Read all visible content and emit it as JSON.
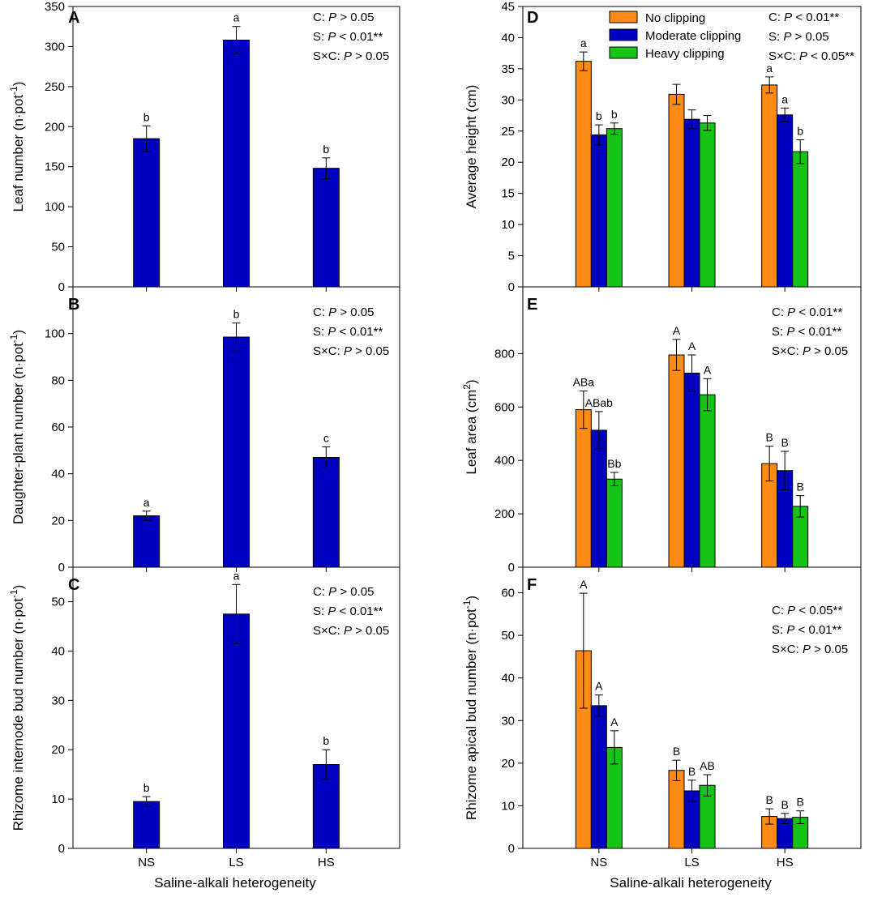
{
  "figure": {
    "xlabel": "Saline-alkali heterogeneity",
    "groups": [
      "NS",
      "LS",
      "HS"
    ]
  },
  "legend": [
    {
      "name": "No clipping",
      "color": "#FF8A14"
    },
    {
      "name": "Moderate clipping",
      "color": "#0000C0"
    },
    {
      "name": "Heavy clipping",
      "color": "#16C416"
    }
  ],
  "chart_data": [
    {
      "id": "A",
      "type": "bar",
      "ylabel_parts": [
        "Leaf number (n·pot",
        "-1",
        ")"
      ],
      "ylim": [
        0,
        350
      ],
      "yticks": [
        0,
        50,
        100,
        150,
        200,
        250,
        300,
        350
      ],
      "categories": [
        "NS",
        "LS",
        "HS"
      ],
      "series": [
        {
          "name": "All",
          "color": "#0000C0",
          "values": [
            185,
            308,
            148
          ],
          "errors": [
            16,
            17,
            13
          ],
          "letters": [
            "b",
            "a",
            "b"
          ]
        }
      ],
      "stats": [
        {
          "prefix": "C: ",
          "italic": "P",
          "suffix": " > 0.05"
        },
        {
          "prefix": "S: ",
          "italic": "P",
          "suffix": " < 0.01**"
        },
        {
          "prefix": "S×C: ",
          "italic": "P",
          "suffix": " > 0.05"
        }
      ]
    },
    {
      "id": "B",
      "type": "bar",
      "ylabel_parts": [
        "Daughter-plant number (n·pot",
        "-1",
        ")"
      ],
      "ylim": [
        0,
        120
      ],
      "yticks": [
        0,
        20,
        40,
        60,
        80,
        100
      ],
      "categories": [
        "NS",
        "LS",
        "HS"
      ],
      "series": [
        {
          "name": "All",
          "color": "#0000C0",
          "values": [
            22,
            98.5,
            47
          ],
          "errors": [
            2,
            6,
            4.5
          ],
          "letters": [
            "a",
            "b",
            "c"
          ]
        }
      ],
      "stats": [
        {
          "prefix": "C: ",
          "italic": "P",
          "suffix": " > 0.05"
        },
        {
          "prefix": "S: ",
          "italic": "P",
          "suffix": " < 0.01**"
        },
        {
          "prefix": "S×C: ",
          "italic": "P",
          "suffix": " > 0.05"
        }
      ]
    },
    {
      "id": "C",
      "type": "bar",
      "ylabel_parts": [
        "Rhizome internode bud number (n·pot",
        "-1",
        ")"
      ],
      "ylim": [
        0,
        57
      ],
      "yticks": [
        0,
        10,
        20,
        30,
        40,
        50
      ],
      "categories": [
        "NS",
        "LS",
        "HS"
      ],
      "series": [
        {
          "name": "All",
          "color": "#0000C0",
          "values": [
            9.5,
            47.5,
            17
          ],
          "errors": [
            1,
            6,
            3
          ],
          "letters": [
            "b",
            "a",
            "b"
          ]
        }
      ],
      "stats": [
        {
          "prefix": "C: ",
          "italic": "P",
          "suffix": " > 0.05"
        },
        {
          "prefix": "S: ",
          "italic": "P",
          "suffix": " < 0.01**"
        },
        {
          "prefix": "S×C: ",
          "italic": "P",
          "suffix": " > 0.05"
        }
      ]
    },
    {
      "id": "D",
      "type": "bar",
      "ylabel_parts": [
        "Average height (cm)"
      ],
      "ylim": [
        0,
        45
      ],
      "yticks": [
        0,
        5,
        10,
        15,
        20,
        25,
        30,
        35,
        40,
        45
      ],
      "categories": [
        "NS",
        "LS",
        "HS"
      ],
      "series": [
        {
          "name": "No clipping",
          "color": "#FF8A14",
          "values": [
            36.2,
            30.9,
            32.4
          ],
          "errors": [
            1.5,
            1.6,
            1.3
          ],
          "letters": [
            "a",
            "",
            "a"
          ]
        },
        {
          "name": "Moderate clipping",
          "color": "#0000C0",
          "values": [
            24.4,
            26.9,
            27.6
          ],
          "errors": [
            1.6,
            1.5,
            1.1
          ],
          "letters": [
            "b",
            "",
            "a"
          ]
        },
        {
          "name": "Heavy clipping",
          "color": "#16C416",
          "values": [
            25.4,
            26.3,
            21.7
          ],
          "errors": [
            0.9,
            1.2,
            1.9
          ],
          "letters": [
            "b",
            "",
            "b"
          ]
        }
      ],
      "stats": [
        {
          "prefix": "C: ",
          "italic": "P",
          "suffix": " < 0.01**"
        },
        {
          "prefix": "S: ",
          "italic": "P",
          "suffix": " > 0.05"
        },
        {
          "prefix": "S×C: ",
          "italic": "P",
          "suffix": " < 0.05**"
        }
      ]
    },
    {
      "id": "E",
      "type": "bar",
      "ylabel_parts": [
        "Leaf area (cm",
        "2",
        ")"
      ],
      "ylim": [
        0,
        1050
      ],
      "yticks": [
        0,
        200,
        400,
        600,
        800
      ],
      "categories": [
        "NS",
        "LS",
        "HS"
      ],
      "series": [
        {
          "name": "No clipping",
          "color": "#FF8A14",
          "values": [
            590,
            795,
            388
          ],
          "errors": [
            70,
            58,
            65
          ],
          "letters": [
            "ABa",
            "A",
            "B"
          ]
        },
        {
          "name": "Moderate clipping",
          "color": "#0000C0",
          "values": [
            513,
            727,
            362
          ],
          "errors": [
            70,
            68,
            72
          ],
          "letters": [
            "ABab",
            "A",
            "B"
          ]
        },
        {
          "name": "Heavy clipping",
          "color": "#16C416",
          "values": [
            330,
            646,
            228
          ],
          "errors": [
            25,
            60,
            40
          ],
          "letters": [
            "Bb",
            "A",
            "B"
          ]
        }
      ],
      "stats": [
        {
          "prefix": "C: ",
          "italic": "P",
          "suffix": " < 0.01**"
        },
        {
          "prefix": "S: ",
          "italic": "P",
          "suffix": " < 0.01**"
        },
        {
          "prefix": "S×C: ",
          "italic": "P",
          "suffix": " > 0.05"
        }
      ]
    },
    {
      "id": "F",
      "type": "bar",
      "ylabel_parts": [
        "Rhizome apical bud number (n·pot",
        "-1",
        ")"
      ],
      "ylim": [
        0,
        66
      ],
      "yticks": [
        0,
        10,
        20,
        30,
        40,
        50,
        60
      ],
      "categories": [
        "NS",
        "LS",
        "HS"
      ],
      "series": [
        {
          "name": "No clipping",
          "color": "#FF8A14",
          "values": [
            46.4,
            18.3,
            7.5
          ],
          "errors": [
            13.5,
            2.4,
            1.8
          ],
          "letters": [
            "A",
            "B",
            "B"
          ]
        },
        {
          "name": "Moderate clipping",
          "color": "#0000C0",
          "values": [
            33.5,
            13.5,
            7
          ],
          "errors": [
            2.5,
            2.5,
            1.2
          ],
          "letters": [
            "A",
            "B",
            "B"
          ]
        },
        {
          "name": "Heavy clipping",
          "color": "#16C416",
          "values": [
            23.7,
            14.8,
            7.3
          ],
          "errors": [
            3.9,
            2.5,
            1.5
          ],
          "letters": [
            "A",
            "AB",
            "B"
          ]
        }
      ],
      "stats": [
        {
          "prefix": "C: ",
          "italic": "P",
          "suffix": " < 0.05**"
        },
        {
          "prefix": "S: ",
          "italic": "P",
          "suffix": " < 0.01**"
        },
        {
          "prefix": "S×C: ",
          "italic": "P",
          "suffix": " > 0.05"
        }
      ]
    }
  ]
}
